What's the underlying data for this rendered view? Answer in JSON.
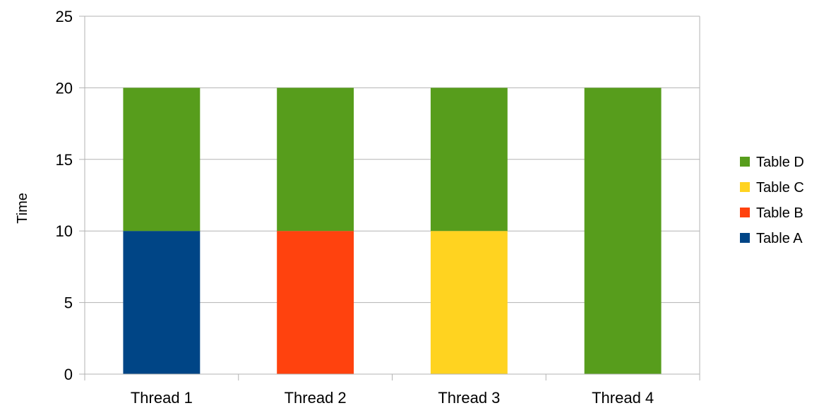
{
  "chart_data": {
    "type": "bar",
    "stacked": true,
    "categories": [
      "Thread 1",
      "Thread 2",
      "Thread 3",
      "Thread 4"
    ],
    "series": [
      {
        "name": "Table A",
        "color": "#004586",
        "values": [
          10,
          0,
          0,
          0
        ]
      },
      {
        "name": "Table B",
        "color": "#ff420e",
        "values": [
          0,
          10,
          0,
          0
        ]
      },
      {
        "name": "Table C",
        "color": "#ffd320",
        "values": [
          0,
          0,
          10,
          0
        ]
      },
      {
        "name": "Table D",
        "color": "#579d1c",
        "values": [
          10,
          10,
          10,
          20
        ]
      }
    ],
    "title": "",
    "xlabel": "",
    "ylabel": "Time",
    "ylim": [
      0,
      25
    ],
    "yticks": [
      0,
      5,
      10,
      15,
      20,
      25
    ],
    "grid": true,
    "legend_position": "right",
    "legend_order": [
      "Table D",
      "Table C",
      "Table B",
      "Table A"
    ]
  }
}
